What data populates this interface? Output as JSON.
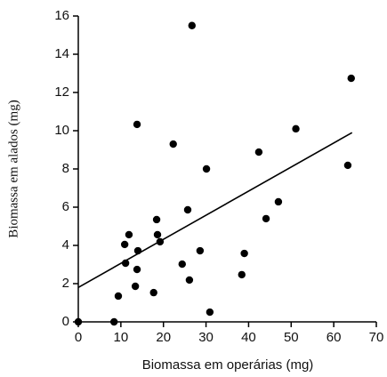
{
  "chart_data": {
    "type": "scatter",
    "x_label": "Biomassa em operárias (mg)",
    "y_label": "Biomassa em alados (mg)",
    "xlim": [
      0,
      70
    ],
    "xticks": [
      0,
      10,
      20,
      30,
      40,
      50,
      60,
      70
    ],
    "ylim": [
      0,
      16
    ],
    "yticks": [
      0,
      2,
      4,
      6,
      8,
      10,
      12,
      14,
      16
    ],
    "color": "#000000",
    "x": [
      0,
      8.4,
      9.4,
      13.4,
      13.8,
      11.1,
      10.9,
      11.9,
      14.0,
      13.8,
      17.7,
      18.4,
      18.6,
      19.2,
      22.3,
      24.4,
      25.7,
      26.1,
      26.7,
      28.6,
      30.1,
      30.9,
      38.4,
      39.0,
      42.4,
      44.1,
      47.0,
      51.1,
      63.3,
      64.1
    ],
    "y": [
      0,
      0,
      1.35,
      1.86,
      2.74,
      3.07,
      4.05,
      4.56,
      3.72,
      10.33,
      1.53,
      5.35,
      4.56,
      4.19,
      9.3,
      3.02,
      5.86,
      2.19,
      15.5,
      3.72,
      8.0,
      0.51,
      2.47,
      3.58,
      8.88,
      5.4,
      6.28,
      10.1,
      8.19,
      12.74
    ],
    "fit_line": {
      "x": [
        0,
        64.3
      ],
      "y": [
        1.8,
        9.9
      ]
    }
  }
}
